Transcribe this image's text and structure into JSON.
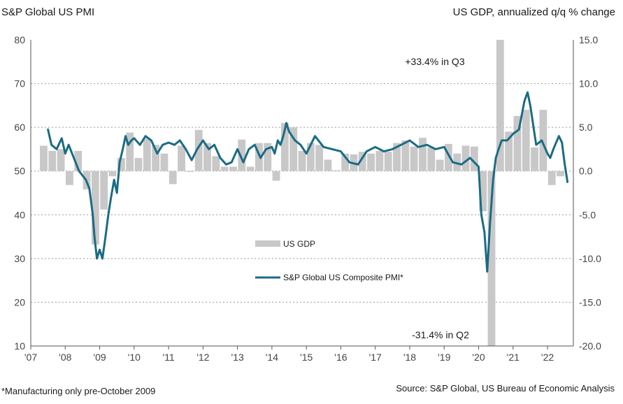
{
  "chart_data": {
    "type": "bar+line",
    "title_left": "S&P Global US PMI",
    "title_right": "US GDP, annualized q/q % change",
    "x_tick_labels": [
      "'07",
      "'08",
      "'09",
      "'10",
      "'11",
      "'12",
      "'13",
      "'14",
      "'15",
      "'16",
      "'17",
      "'18",
      "'19",
      "'20",
      "'21",
      "'22"
    ],
    "x_range": [
      2007,
      2022.75
    ],
    "left_axis": {
      "ticks": [
        "80",
        "70",
        "60",
        "50",
        "40",
        "30",
        "20",
        "10"
      ],
      "ylim": [
        10,
        80
      ]
    },
    "right_axis": {
      "ticks": [
        "15.0",
        "10.0",
        "5.0",
        "0.0",
        "-5.0",
        "-10.0",
        "-15.0",
        "-20.0"
      ],
      "ylim": [
        -20,
        15
      ]
    },
    "grid": "horizontal dotted",
    "legend": [
      {
        "label": "US GDP",
        "kind": "bar",
        "color": "#c8c8c8"
      },
      {
        "label": "S&P Global US Composite PMI*",
        "kind": "line",
        "color": "#1b6b84"
      }
    ],
    "gdp_series": {
      "name": "US GDP",
      "axis": "right",
      "quarters": [
        "2007Q2",
        "2007Q3",
        "2007Q4",
        "2008Q1",
        "2008Q2",
        "2008Q3",
        "2008Q4",
        "2009Q1",
        "2009Q2",
        "2009Q3",
        "2009Q4",
        "2010Q1",
        "2010Q2",
        "2010Q3",
        "2010Q4",
        "2011Q1",
        "2011Q2",
        "2011Q3",
        "2011Q4",
        "2012Q1",
        "2012Q2",
        "2012Q3",
        "2012Q4",
        "2013Q1",
        "2013Q2",
        "2013Q3",
        "2013Q4",
        "2014Q1",
        "2014Q2",
        "2014Q3",
        "2014Q4",
        "2015Q1",
        "2015Q2",
        "2015Q3",
        "2015Q4",
        "2016Q1",
        "2016Q2",
        "2016Q3",
        "2016Q4",
        "2017Q1",
        "2017Q2",
        "2017Q3",
        "2017Q4",
        "2018Q1",
        "2018Q2",
        "2018Q3",
        "2018Q4",
        "2019Q1",
        "2019Q2",
        "2019Q3",
        "2019Q4",
        "2020Q1",
        "2020Q2",
        "2020Q3",
        "2020Q4",
        "2021Q1",
        "2021Q2",
        "2021Q3",
        "2021Q4",
        "2022Q1",
        "2022Q2"
      ],
      "values": [
        2.9,
        2.3,
        2.5,
        -1.6,
        2.3,
        -2.1,
        -8.4,
        -4.4,
        -0.6,
        1.5,
        4.4,
        1.5,
        3.7,
        3.0,
        2.0,
        -1.5,
        2.9,
        -0.1,
        4.7,
        3.2,
        1.7,
        0.5,
        0.5,
        3.6,
        0.5,
        3.2,
        3.2,
        -1.1,
        5.5,
        5.0,
        2.3,
        3.2,
        3.0,
        1.3,
        0.1,
        2.0,
        1.9,
        2.2,
        2.0,
        2.3,
        2.2,
        3.2,
        3.5,
        2.8,
        3.8,
        2.7,
        1.3,
        3.1,
        2.0,
        2.9,
        2.8,
        -4.6,
        -31.4,
        33.4,
        4.5,
        6.3,
        7.0,
        2.7,
        7.0,
        -1.6,
        -0.6
      ]
    },
    "pmi_series": {
      "name": "S&P Global US Composite PMI*",
      "axis": "left",
      "x": [
        2007.5,
        2007.6,
        2007.75,
        2007.9,
        2008.0,
        2008.1,
        2008.2,
        2008.3,
        2008.4,
        2008.5,
        2008.6,
        2008.7,
        2008.8,
        2008.85,
        2008.92,
        2009.0,
        2009.08,
        2009.17,
        2009.25,
        2009.33,
        2009.42,
        2009.5,
        2009.58,
        2009.67,
        2009.75,
        2009.83,
        2009.92,
        2010.0,
        2010.17,
        2010.33,
        2010.5,
        2010.67,
        2010.83,
        2011.0,
        2011.17,
        2011.33,
        2011.5,
        2011.67,
        2011.83,
        2012.0,
        2012.17,
        2012.33,
        2012.5,
        2012.67,
        2012.83,
        2013.0,
        2013.17,
        2013.33,
        2013.5,
        2013.67,
        2013.83,
        2014.0,
        2014.08,
        2014.17,
        2014.25,
        2014.33,
        2014.42,
        2014.5,
        2014.67,
        2014.83,
        2015.0,
        2015.25,
        2015.5,
        2015.75,
        2016.0,
        2016.25,
        2016.5,
        2016.75,
        2017.0,
        2017.25,
        2017.5,
        2017.75,
        2018.0,
        2018.25,
        2018.5,
        2018.75,
        2019.0,
        2019.25,
        2019.5,
        2019.75,
        2020.0,
        2020.08,
        2020.17,
        2020.25,
        2020.33,
        2020.42,
        2020.5,
        2020.58,
        2020.67,
        2020.83,
        2021.0,
        2021.17,
        2021.33,
        2021.42,
        2021.5,
        2021.67,
        2021.83,
        2022.0,
        2022.08,
        2022.17,
        2022.33,
        2022.42,
        2022.5,
        2022.58
      ],
      "values": [
        59.5,
        56,
        55,
        57.5,
        54,
        56,
        54,
        52,
        50,
        49,
        48,
        46,
        40,
        35,
        30,
        32,
        30,
        35,
        40,
        44,
        48,
        45,
        52,
        55,
        58,
        56,
        57,
        57.5,
        56,
        58,
        57,
        54,
        56,
        56.5,
        56,
        57,
        55,
        52.5,
        55,
        57,
        55,
        56,
        53,
        51.5,
        52,
        55,
        52,
        55,
        56,
        53,
        55,
        55.5,
        54,
        57,
        56,
        58,
        61,
        59,
        57,
        56,
        54,
        58,
        55.5,
        55,
        54.5,
        52,
        51.5,
        54.5,
        55.5,
        54.5,
        55,
        56,
        57,
        55.5,
        56,
        55,
        55.5,
        52,
        51.5,
        53,
        51,
        40,
        36,
        27,
        38,
        48,
        53,
        55,
        57,
        57,
        58.5,
        59.5,
        66,
        68,
        65,
        56,
        57,
        54,
        53,
        55,
        58,
        56.5,
        51.5,
        47.5
      ]
    },
    "annotations": [
      {
        "text": "+33.4% in Q3",
        "quarter": "2020Q3"
      },
      {
        "text": "-31.4% in Q2",
        "quarter": "2020Q2"
      }
    ]
  },
  "footnote": "*Manufacturing only pre-October 2009",
  "source": "Source: S&P Global, US Bureau of Economic Analysis"
}
